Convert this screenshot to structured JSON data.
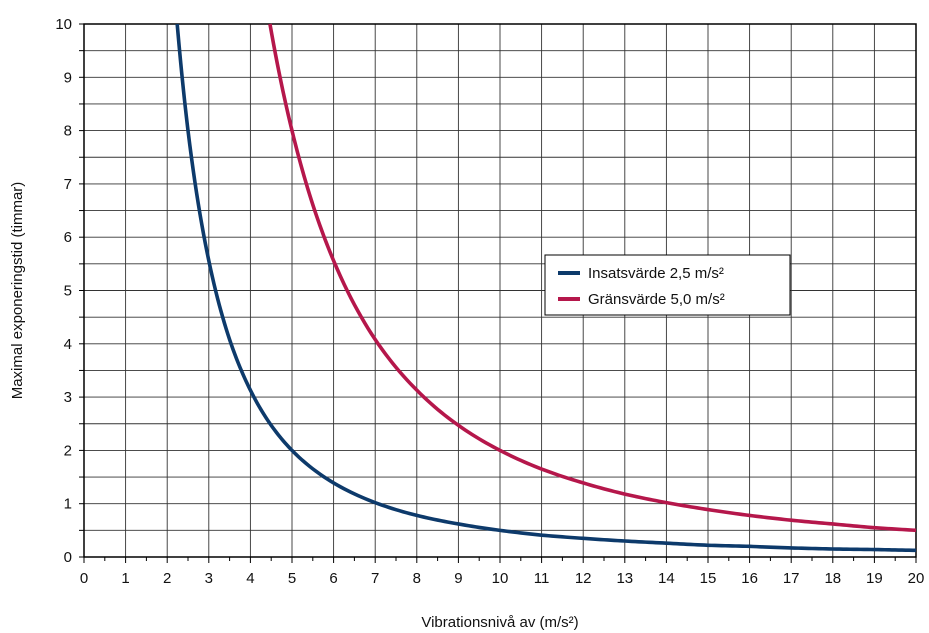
{
  "chart_data": {
    "type": "line",
    "title": "",
    "xlabel": "Vibrationsnivå av (m/s²)",
    "ylabel": "Maximal exponeringstid (timmar)",
    "xlim": [
      0,
      20
    ],
    "ylim": [
      0,
      10
    ],
    "x_ticks": [
      "0",
      "1",
      "2",
      "3",
      "4",
      "5",
      "6",
      "7",
      "8",
      "9",
      "10",
      "11",
      "12",
      "13",
      "14",
      "15",
      "16",
      "17",
      "18",
      "19",
      "20"
    ],
    "y_ticks": [
      "0",
      "1",
      "2",
      "3",
      "4",
      "5",
      "6",
      "7",
      "8",
      "9",
      "10"
    ],
    "grid": true,
    "legend_position": "center-right",
    "series": [
      {
        "name": "Insatsvärde 2,5 m/s²",
        "color": "#0d3a6b",
        "x": [
          2.24,
          2.5,
          3,
          3.5,
          4,
          4.5,
          5,
          6,
          7,
          8,
          9,
          10,
          11,
          12,
          13,
          14,
          15,
          16,
          17,
          18,
          19,
          20
        ],
        "values": [
          10.0,
          8.0,
          5.56,
          4.08,
          3.13,
          2.47,
          2.0,
          1.39,
          1.02,
          0.78,
          0.62,
          0.5,
          0.41,
          0.35,
          0.3,
          0.26,
          0.22,
          0.2,
          0.17,
          0.15,
          0.14,
          0.125
        ]
      },
      {
        "name": "Gränsvärde 5,0 m/s²",
        "color": "#b5174b",
        "x": [
          4.47,
          5,
          5.5,
          6,
          7,
          8,
          9,
          10,
          11,
          12,
          13,
          14,
          15,
          16,
          17,
          18,
          19,
          20
        ],
        "values": [
          10.0,
          8.0,
          6.61,
          5.56,
          4.08,
          3.13,
          2.47,
          2.0,
          1.65,
          1.39,
          1.18,
          1.02,
          0.89,
          0.78,
          0.69,
          0.62,
          0.55,
          0.5
        ]
      }
    ]
  }
}
